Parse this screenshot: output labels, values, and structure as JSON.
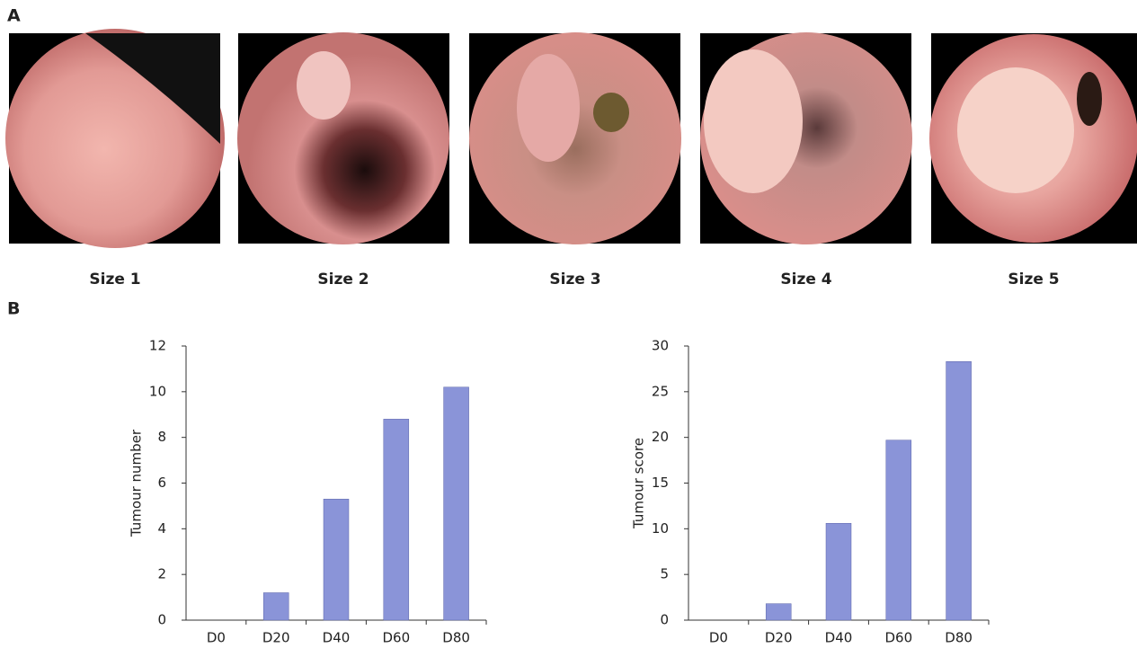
{
  "panel_labels": [
    "A",
    "B"
  ],
  "images": [
    {
      "caption": "Size 1"
    },
    {
      "caption": "Size 2"
    },
    {
      "caption": "Size 3"
    },
    {
      "caption": "Size 4"
    },
    {
      "caption": "Size 5"
    }
  ],
  "chart_data": [
    {
      "type": "bar",
      "y_label": "Tumour number",
      "categories": [
        "D0",
        "D20",
        "D40",
        "D60",
        "D80"
      ],
      "values": [
        0,
        1.2,
        5.3,
        8.8,
        10.2
      ],
      "color": "#8a94d8",
      "ylim": [
        0,
        12
      ],
      "yticks": [
        0,
        2,
        4,
        6,
        8,
        10,
        12
      ],
      "grid": false
    },
    {
      "type": "bar",
      "y_label": "Tumour score",
      "categories": [
        "D0",
        "D20",
        "D40",
        "D60",
        "D80"
      ],
      "values": [
        0,
        1.8,
        10.6,
        19.7,
        28.3
      ],
      "color": "#8a94d8",
      "ylim": [
        0,
        30
      ],
      "yticks": [
        0,
        5,
        10,
        15,
        20,
        25,
        30
      ],
      "grid": false
    }
  ]
}
